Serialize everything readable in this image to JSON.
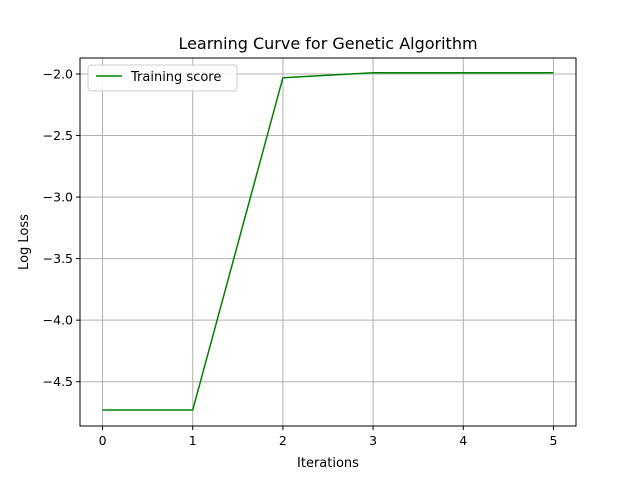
{
  "chart_data": {
    "type": "line",
    "title": "Learning Curve for Genetic Algorithm",
    "xlabel": "Iterations",
    "ylabel": "Log Loss",
    "x": [
      0,
      1,
      2,
      3,
      4,
      5
    ],
    "series": [
      {
        "name": "Training score",
        "color": "#008000",
        "values": [
          -4.73,
          -4.73,
          -2.03,
          -1.99,
          -1.99,
          -1.99
        ]
      }
    ],
    "xlim": [
      -0.25,
      5.25
    ],
    "ylim": [
      -4.86,
      -1.87
    ],
    "x_ticks": [
      0,
      1,
      2,
      3,
      4,
      5
    ],
    "x_tick_labels": [
      "0",
      "1",
      "2",
      "3",
      "4",
      "5"
    ],
    "y_ticks": [
      -4.5,
      -4.0,
      -3.5,
      -3.0,
      -2.5,
      -2.0
    ],
    "y_tick_labels": [
      "−4.5",
      "−4.0",
      "−3.5",
      "−3.0",
      "−2.5",
      "−2.0"
    ],
    "grid": true,
    "legend_position": "top-left"
  }
}
